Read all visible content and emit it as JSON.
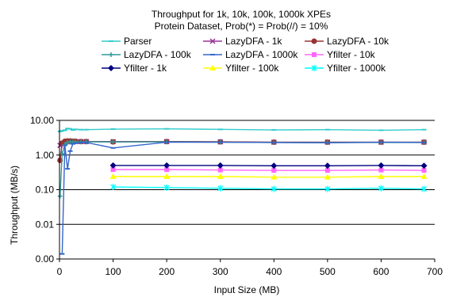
{
  "chart_data": {
    "type": "line",
    "title": "Throughput for 1k, 10k, 100k, 1000k XPEs",
    "subtitle": "Protein Dataset, Prob(*) = Prob(//) = 10%",
    "xlabel": "Input Size (MB)",
    "ylabel": "Throughput (MB/s)",
    "xlim": [
      0,
      700
    ],
    "ylim": [
      0.001,
      10
    ],
    "yscale": "log",
    "xticks": [
      0,
      100,
      200,
      300,
      400,
      500,
      600,
      700
    ],
    "xtick_labels": [
      "0",
      "100",
      "200",
      "300",
      "400",
      "500",
      "600",
      "700"
    ],
    "yticks": [
      0.001,
      0.01,
      0.1,
      1,
      10
    ],
    "ytick_labels": [
      "0.00",
      "0.01",
      "0.10",
      "1.00",
      "10.00"
    ],
    "grid": "horizontal",
    "legend_position": "top",
    "series": [
      {
        "name": "Parser",
        "color": "#33cccc",
        "marker": "dash",
        "points": [
          [
            1,
            4.8
          ],
          [
            5,
            5.0
          ],
          [
            10,
            5.2
          ],
          [
            15,
            5.8
          ],
          [
            20,
            5.7
          ],
          [
            25,
            5.3
          ],
          [
            30,
            5.5
          ],
          [
            40,
            5.4
          ],
          [
            50,
            5.4
          ],
          [
            100,
            5.6
          ],
          [
            200,
            5.7
          ],
          [
            300,
            5.5
          ],
          [
            400,
            5.3
          ],
          [
            500,
            5.4
          ],
          [
            600,
            5.2
          ],
          [
            680,
            5.4
          ]
        ]
      },
      {
        "name": "LazyDFA - 1k",
        "color": "#993399",
        "marker": "x",
        "points": [
          [
            1,
            1.9
          ],
          [
            5,
            2.1
          ],
          [
            10,
            2.3
          ],
          [
            15,
            2.4
          ],
          [
            20,
            2.45
          ],
          [
            25,
            2.45
          ],
          [
            30,
            2.45
          ],
          [
            40,
            2.45
          ],
          [
            50,
            2.45
          ],
          [
            100,
            2.45
          ],
          [
            200,
            2.45
          ],
          [
            300,
            2.4
          ],
          [
            400,
            2.35
          ],
          [
            500,
            2.35
          ],
          [
            600,
            2.35
          ],
          [
            680,
            2.35
          ]
        ]
      },
      {
        "name": "LazyDFA - 10k",
        "color": "#993333",
        "marker": "circle",
        "points": [
          [
            1,
            0.7
          ],
          [
            5,
            2.2
          ],
          [
            10,
            2.5
          ],
          [
            15,
            2.55
          ],
          [
            20,
            2.55
          ],
          [
            25,
            2.5
          ],
          [
            30,
            2.5
          ],
          [
            40,
            2.45
          ],
          [
            50,
            2.45
          ],
          [
            100,
            2.4
          ],
          [
            200,
            2.45
          ],
          [
            300,
            2.4
          ],
          [
            400,
            2.35
          ],
          [
            500,
            2.35
          ],
          [
            600,
            2.35
          ],
          [
            680,
            2.35
          ]
        ]
      },
      {
        "name": "LazyDFA - 100k",
        "color": "#339999",
        "marker": "plus",
        "points": [
          [
            1,
            0.065
          ],
          [
            5,
            1.1
          ],
          [
            10,
            2.0
          ],
          [
            15,
            2.3
          ],
          [
            20,
            2.4
          ],
          [
            25,
            2.4
          ],
          [
            30,
            2.4
          ],
          [
            40,
            2.4
          ],
          [
            50,
            2.4
          ],
          [
            100,
            2.4
          ],
          [
            200,
            2.4
          ],
          [
            300,
            2.35
          ],
          [
            400,
            2.3
          ],
          [
            500,
            2.3
          ],
          [
            600,
            2.3
          ],
          [
            680,
            2.3
          ]
        ]
      },
      {
        "name": "LazyDFA - 1000k",
        "color": "#3366cc",
        "marker": "dash",
        "points": [
          [
            5,
            0.0014
          ],
          [
            10,
            1.9
          ],
          [
            15,
            0.4
          ],
          [
            20,
            1.3
          ],
          [
            25,
            2.1
          ],
          [
            30,
            2.2
          ],
          [
            40,
            2.3
          ],
          [
            50,
            2.3
          ],
          [
            100,
            1.6
          ],
          [
            200,
            2.35
          ],
          [
            300,
            2.35
          ],
          [
            400,
            2.3
          ],
          [
            500,
            2.25
          ],
          [
            600,
            2.35
          ],
          [
            680,
            2.3
          ]
        ]
      },
      {
        "name": "Yfilter - 10k",
        "color": "#ff66ff",
        "marker": "square",
        "points": [
          [
            100,
            0.38
          ],
          [
            200,
            0.38
          ],
          [
            300,
            0.37
          ],
          [
            400,
            0.36
          ],
          [
            500,
            0.36
          ],
          [
            600,
            0.37
          ],
          [
            680,
            0.36
          ]
        ]
      },
      {
        "name": "Yfilter - 1k",
        "color": "#000080",
        "marker": "diamond",
        "points": [
          [
            100,
            0.5
          ],
          [
            200,
            0.5
          ],
          [
            300,
            0.5
          ],
          [
            400,
            0.49
          ],
          [
            500,
            0.49
          ],
          [
            600,
            0.5
          ],
          [
            680,
            0.49
          ]
        ]
      },
      {
        "name": "Yfilter - 100k",
        "color": "#ffff00",
        "marker": "triangle",
        "points": [
          [
            100,
            0.24
          ],
          [
            200,
            0.24
          ],
          [
            300,
            0.24
          ],
          [
            400,
            0.23
          ],
          [
            500,
            0.23
          ],
          [
            600,
            0.24
          ],
          [
            680,
            0.24
          ]
        ]
      },
      {
        "name": "Yfilter - 1000k",
        "color": "#00ffff",
        "marker": "star",
        "points": [
          [
            100,
            0.12
          ],
          [
            200,
            0.115
          ],
          [
            300,
            0.11
          ],
          [
            400,
            0.105
          ],
          [
            500,
            0.105
          ],
          [
            600,
            0.11
          ],
          [
            680,
            0.105
          ]
        ]
      }
    ]
  }
}
